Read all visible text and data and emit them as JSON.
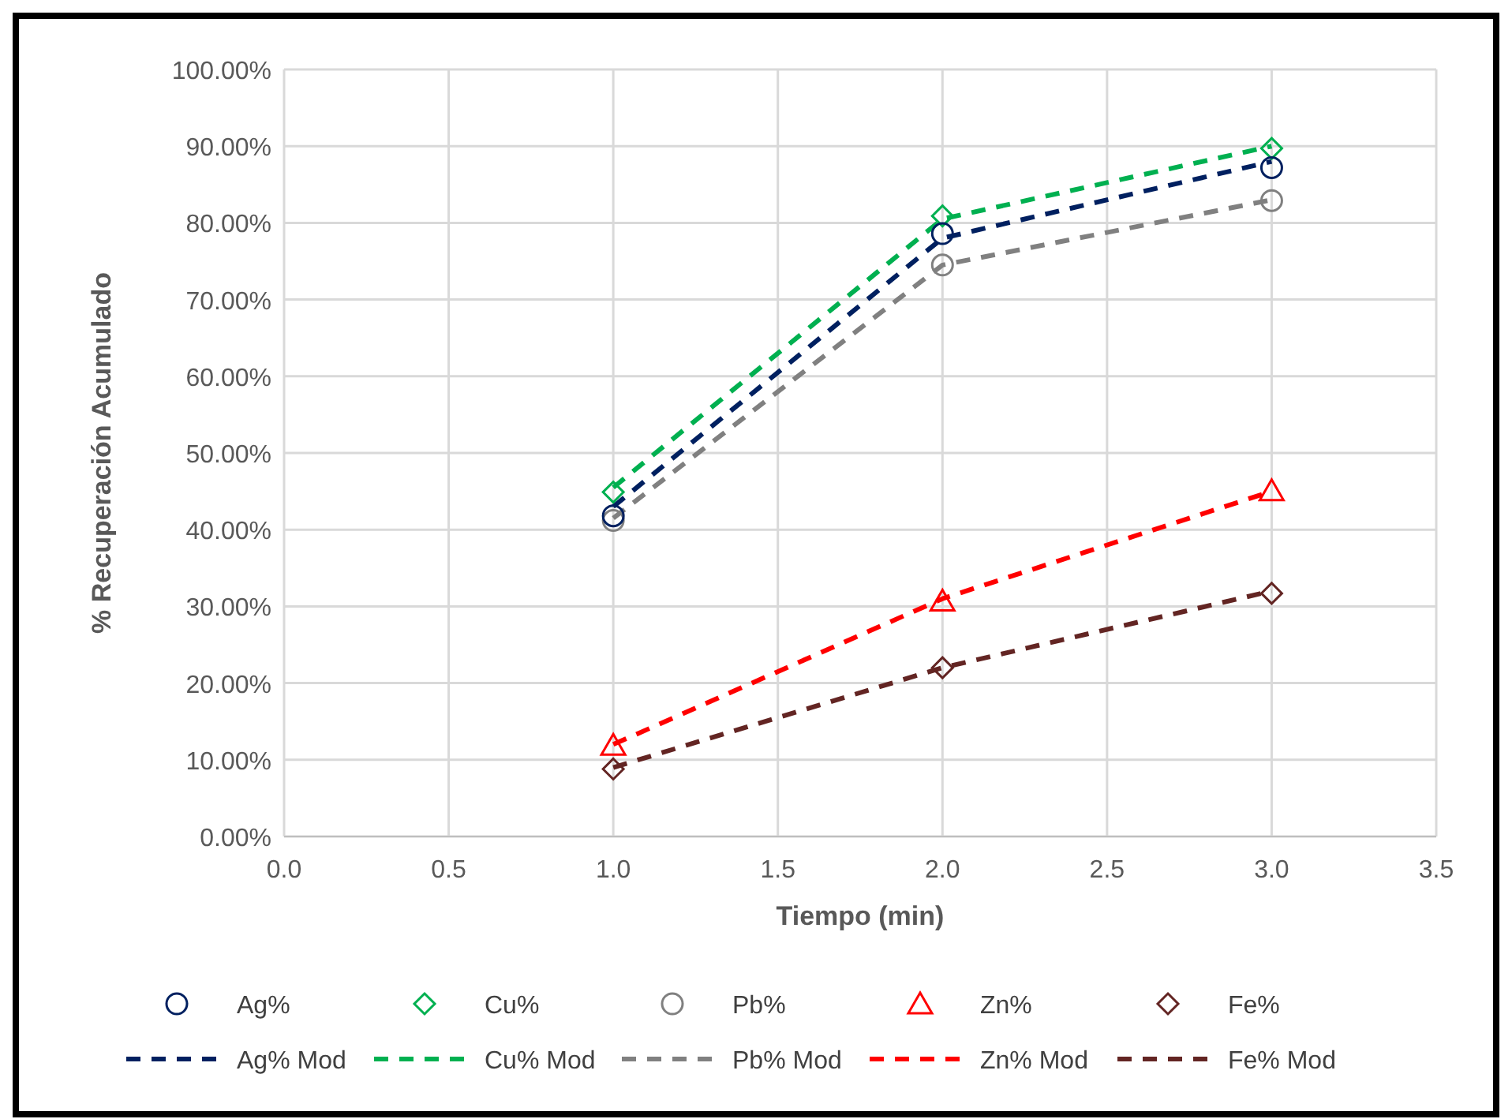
{
  "chart_data": {
    "type": "line",
    "xlabel": "Tiempo (min)",
    "ylabel": "% Recuperación Acumulado",
    "xlim": [
      0,
      3.5
    ],
    "xticks": [
      {
        "value": 0,
        "label": "0.0"
      },
      {
        "value": 0.5,
        "label": "0.5"
      },
      {
        "value": 1,
        "label": "1.0"
      },
      {
        "value": 1.5,
        "label": "1.5"
      },
      {
        "value": 2,
        "label": "2.0"
      },
      {
        "value": 2.5,
        "label": "2.5"
      },
      {
        "value": 3,
        "label": "3.0"
      },
      {
        "value": 3.5,
        "label": "3.5"
      }
    ],
    "ylim": [
      0,
      100
    ],
    "yticks": [
      {
        "value": 0,
        "label": "0.00%"
      },
      {
        "value": 10,
        "label": "10.00%"
      },
      {
        "value": 20,
        "label": "20.00%"
      },
      {
        "value": 30,
        "label": "30.00%"
      },
      {
        "value": 40,
        "label": "40.00%"
      },
      {
        "value": 50,
        "label": "50.00%"
      },
      {
        "value": 60,
        "label": "60.00%"
      },
      {
        "value": 70,
        "label": "70.00%"
      },
      {
        "value": 80,
        "label": "80.00%"
      },
      {
        "value": 90,
        "label": "90.00%"
      },
      {
        "value": 100,
        "label": "100.00%"
      }
    ],
    "grid": true,
    "legend": "bottom",
    "x": [
      1,
      2,
      3
    ],
    "series": [
      {
        "name": "Ag%",
        "type": "scatter",
        "marker": "circle",
        "color": "#002060",
        "values": [
          41.8,
          78.6,
          87.2
        ]
      },
      {
        "name": "Cu%",
        "type": "scatter",
        "marker": "diamond",
        "color": "#00b050",
        "values": [
          44.9,
          80.9,
          89.7
        ]
      },
      {
        "name": "Pb%",
        "type": "scatter",
        "marker": "circle",
        "color": "#808080",
        "values": [
          41.2,
          74.5,
          82.9
        ]
      },
      {
        "name": "Zn%",
        "type": "scatter",
        "marker": "triangle",
        "color": "#ff0000",
        "values": [
          11.9,
          30.7,
          45.1
        ]
      },
      {
        "name": "Fe%",
        "type": "scatter",
        "marker": "diamond",
        "color": "#632523",
        "values": [
          8.8,
          22.0,
          31.7
        ]
      },
      {
        "name": "Ag% Mod",
        "line_style": "dashed",
        "color": "#002060",
        "values": [
          43,
          78,
          88
        ]
      },
      {
        "name": "Cu% Mod",
        "line_style": "dashed",
        "color": "#00b050",
        "values": [
          45.5,
          80.5,
          90
        ]
      },
      {
        "name": "Pb% Mod",
        "line_style": "dashed",
        "color": "#808080",
        "values": [
          41.5,
          74.5,
          83
        ]
      },
      {
        "name": "Zn% Mod",
        "line_style": "dashed",
        "color": "#ff0000",
        "values": [
          12,
          31,
          45
        ]
      },
      {
        "name": "Fe% Mod",
        "line_style": "dashed",
        "color": "#632523",
        "values": [
          9,
          22,
          32
        ]
      }
    ]
  }
}
